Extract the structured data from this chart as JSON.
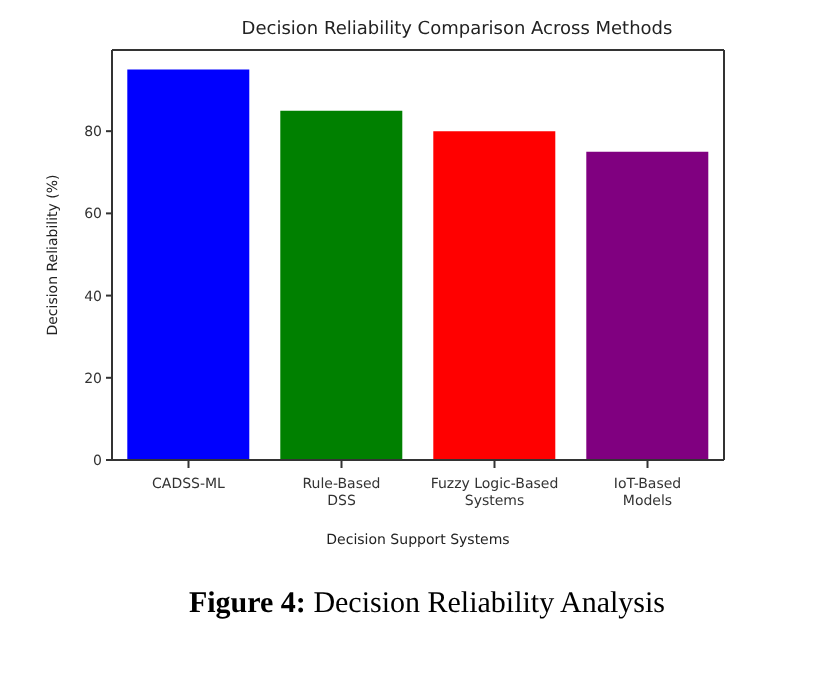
{
  "chart_data": {
    "type": "bar",
    "title": "Decision Reliability Comparison Across Methods",
    "xlabel": "Decision Support Systems",
    "ylabel": "Decision Reliability (%)",
    "categories": [
      "CADSS-ML",
      "Rule-Based\nDSS",
      "Fuzzy Logic-Based\nSystems",
      "IoT-Based\nModels"
    ],
    "values": [
      95,
      85,
      80,
      75
    ],
    "colors": [
      "#0000ff",
      "#008000",
      "#ff0000",
      "#800080"
    ],
    "ylim": [
      0,
      99.75
    ],
    "yticks": [
      0,
      20,
      40,
      60,
      80
    ],
    "grid": false,
    "annotations": [
      "Figure 4: Decision Reliability Analysis"
    ]
  }
}
